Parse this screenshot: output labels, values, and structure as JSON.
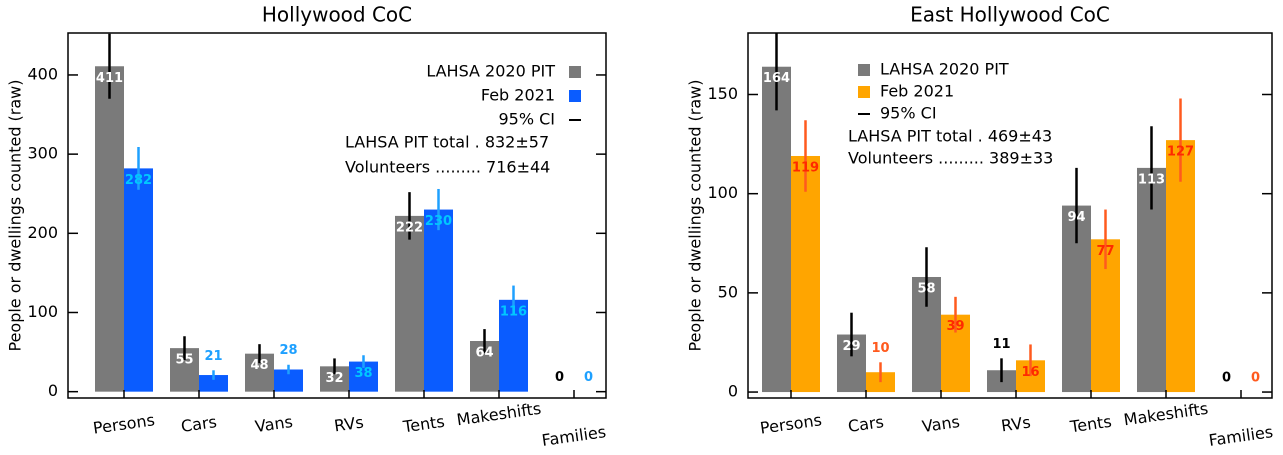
{
  "chart_data": [
    {
      "type": "bar",
      "title": "Hollywood CoC",
      "y_label": "People or dwellings counted (raw)",
      "categories": [
        "Persons",
        "Cars",
        "Vans",
        "RVs",
        "Tents",
        "Makeshifts",
        "Families"
      ],
      "series": [
        {
          "name": "LAHSA 2020 PIT",
          "color": "#7a7a7a",
          "error_color": "#000000",
          "label_color": "#ffffff",
          "values": [
            411,
            55,
            48,
            32,
            222,
            64,
            0
          ],
          "errors": [
            41,
            15,
            12,
            10,
            30,
            15,
            0
          ]
        },
        {
          "name": "Feb 2021",
          "color": "#0a5cff",
          "error_color": "#1ea0ff",
          "label_color": "#00c8ff",
          "values": [
            282,
            21,
            28,
            38,
            230,
            116,
            0
          ],
          "errors": [
            27,
            6,
            6,
            8,
            26,
            18,
            0
          ]
        }
      ],
      "ci_label": "95% CI",
      "annotations": [
        "LAHSA PIT total . 832±57",
        "Volunteers ......... 716±44"
      ],
      "ylim": [
        -8,
        453
      ],
      "yticks": [
        0,
        100,
        200,
        300,
        400
      ],
      "legend": "upper right"
    },
    {
      "type": "bar",
      "title": "East Hollywood CoC",
      "y_label": "People or dwellings counted (raw)",
      "categories": [
        "Persons",
        "Cars",
        "Vans",
        "RVs",
        "Tents",
        "Makeshifts",
        "Families"
      ],
      "series": [
        {
          "name": "LAHSA 2020 PIT",
          "color": "#7a7a7a",
          "error_color": "#000000",
          "label_color": "#ffffff",
          "values": [
            164,
            29,
            58,
            11,
            94,
            113,
            0
          ],
          "errors": [
            22,
            11,
            15,
            6,
            19,
            21,
            0
          ]
        },
        {
          "name": "Feb 2021",
          "color": "#ffa500",
          "error_color": "#ff5a1e",
          "label_color": "#ff2a00",
          "values": [
            119,
            10,
            39,
            16,
            77,
            127,
            0
          ],
          "errors": [
            18,
            5,
            9,
            8,
            15,
            21,
            0
          ]
        }
      ],
      "ci_label": "95% CI",
      "annotations": [
        "LAHSA PIT total . 469±43",
        "Volunteers ......... 389±33"
      ],
      "ylim": [
        -3,
        181
      ],
      "yticks": [
        0,
        50,
        100,
        150
      ],
      "legend": "upper center"
    }
  ]
}
